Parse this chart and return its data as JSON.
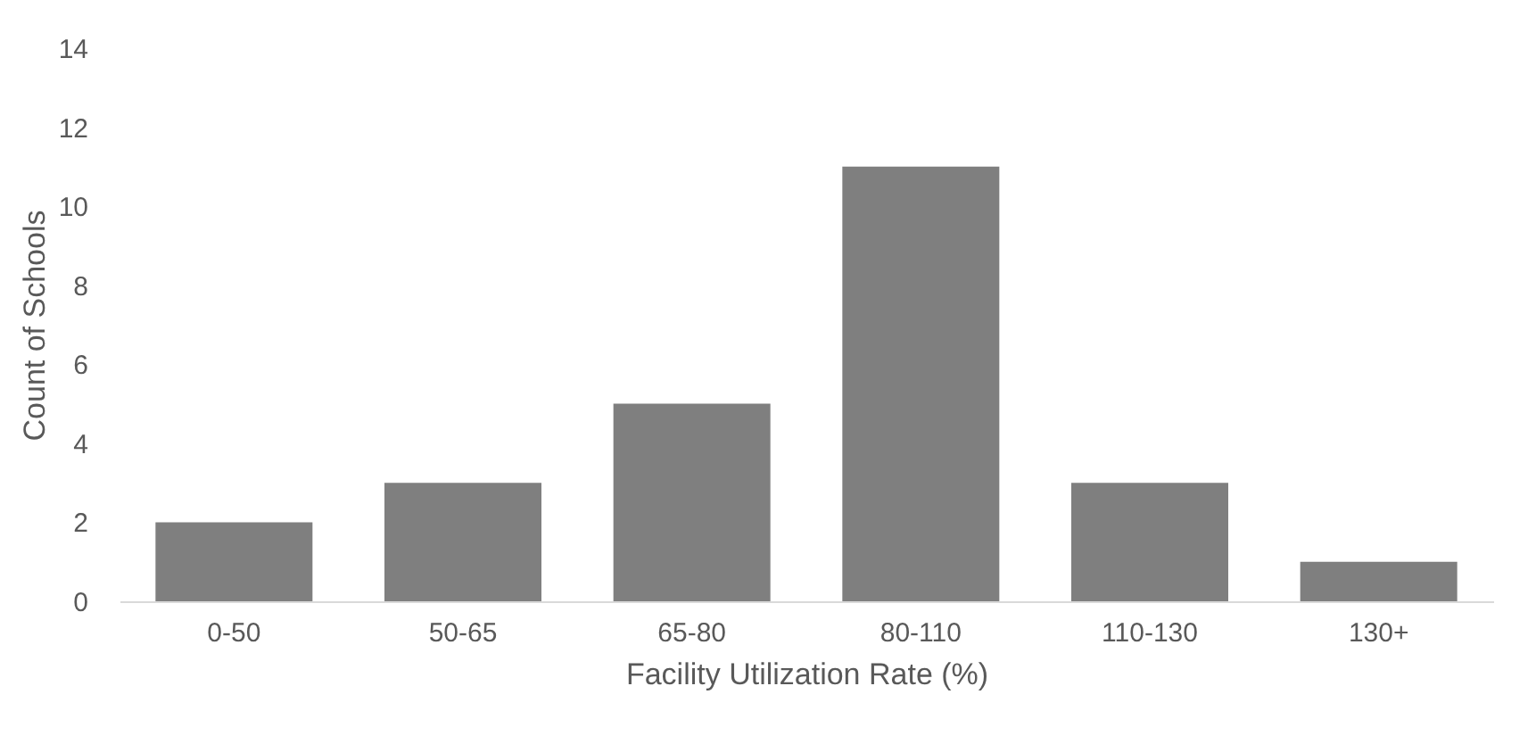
{
  "chart_data": {
    "type": "bar",
    "xlabel": "Facility Utilization Rate (%)",
    "ylabel": "Count of Schools",
    "categories": [
      "0-50",
      "50-65",
      "65-80",
      "80-110",
      "110-130",
      "130+"
    ],
    "values": [
      2,
      3,
      5,
      11,
      3,
      1
    ],
    "color": "#7f7f7f",
    "ylim": [
      0,
      14
    ],
    "yticks": [
      0,
      2,
      4,
      6,
      8,
      10,
      12,
      14
    ],
    "grid": false
  }
}
